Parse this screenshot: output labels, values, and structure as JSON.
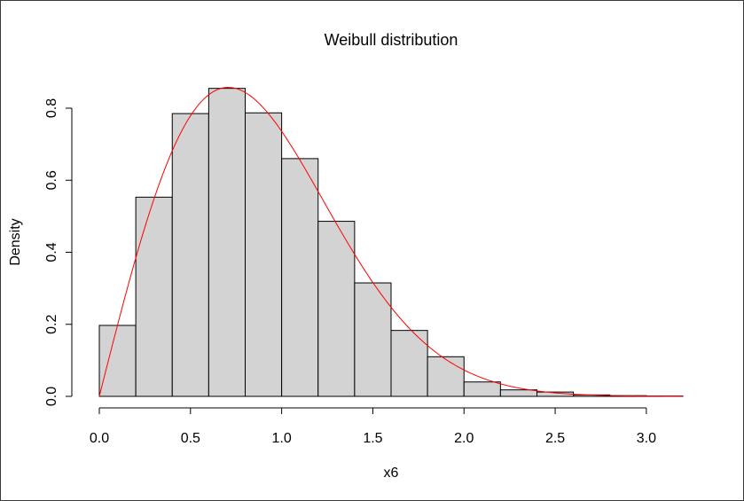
{
  "chart_data": {
    "type": "bar",
    "subtype": "histogram-with-density-curve",
    "title": "Weibull distribution",
    "xlabel": "x6",
    "ylabel": "Density",
    "xlim": [
      0,
      3.2
    ],
    "ylim": [
      0,
      0.86
    ],
    "grid": false,
    "legend": "none",
    "bin_edges": [
      0.0,
      0.2,
      0.4,
      0.6,
      0.8,
      1.0,
      1.2,
      1.4,
      1.6,
      1.8,
      2.0,
      2.2,
      2.4,
      2.6,
      2.8,
      3.0,
      3.2
    ],
    "values": [
      0.197,
      0.553,
      0.785,
      0.855,
      0.787,
      0.66,
      0.486,
      0.315,
      0.183,
      0.11,
      0.04,
      0.018,
      0.012,
      0.004,
      0.002,
      0.001
    ],
    "x_ticks": [
      "0.0",
      "0.5",
      "1.0",
      "1.5",
      "2.0",
      "2.5",
      "3.0"
    ],
    "x_tick_values": [
      0,
      0.5,
      1.0,
      1.5,
      2.0,
      2.5,
      3.0
    ],
    "y_ticks": [
      "0.0",
      "0.2",
      "0.4",
      "0.6",
      "0.8"
    ],
    "y_tick_values": [
      0,
      0.2,
      0.4,
      0.6,
      0.8
    ],
    "curve": {
      "distribution": "weibull",
      "shape": 2,
      "scale": 1,
      "color": "#ff0000"
    },
    "bar_fill": "#d3d3d3",
    "bar_stroke": "#000000"
  }
}
